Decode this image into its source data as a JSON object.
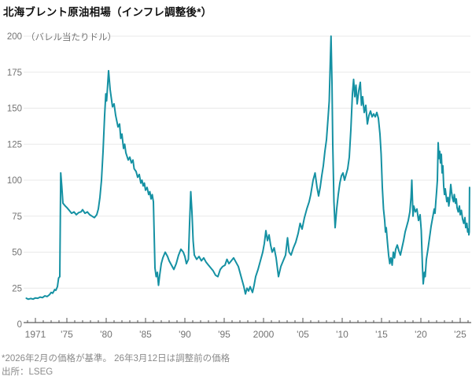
{
  "title": "北海ブレント原油相場（インフレ調整後*）",
  "footnote": "*2026年2月の価格が基準。 26年3月12日は調整前の価格",
  "source": "出所：LSEG",
  "chart_data": {
    "type": "line",
    "title": "北海ブレント原油相場（インフレ調整後*）",
    "unit_label": "（バレル当たりドル）",
    "ylabel": "バレル当たりドル",
    "xlabel": "",
    "grid": "horizontal",
    "legend": "none",
    "line_color": "#1591A3",
    "grid_color": "#e9e9e9",
    "axis_color": "#333333",
    "tick_label_color": "#737373",
    "ylim": [
      0,
      200
    ],
    "xlim": [
      1969.85,
      2026.5
    ],
    "y_ticks": [
      0,
      25,
      50,
      75,
      100,
      125,
      150,
      175,
      200
    ],
    "x_tick_years": [
      1971,
      1975,
      1980,
      1985,
      1990,
      1995,
      2000,
      2005,
      2010,
      2015,
      2020,
      2025
    ],
    "x_tick_labels": [
      "1971",
      "'75",
      "'80",
      "'85",
      "'90",
      "'95",
      "2000",
      "'05",
      "'10",
      "'15",
      "'20",
      "'25"
    ],
    "minor_tick_years": {
      "start": 1970,
      "end": 2026,
      "step": 1
    },
    "series": [
      {
        "name": "北海ブレント原油（インフレ調整後、バレル当たりドル）",
        "points": [
          [
            1969.85,
            18
          ],
          [
            1970.1,
            17.3
          ],
          [
            1970.4,
            17.8
          ],
          [
            1970.7,
            17.4
          ],
          [
            1971.0,
            18.2
          ],
          [
            1971.3,
            18.0
          ],
          [
            1971.6,
            18.8
          ],
          [
            1971.9,
            18.4
          ],
          [
            1972.2,
            19.6
          ],
          [
            1972.5,
            19.2
          ],
          [
            1972.8,
            20.5
          ],
          [
            1973.0,
            22
          ],
          [
            1973.2,
            21.5
          ],
          [
            1973.45,
            24
          ],
          [
            1973.6,
            23.5
          ],
          [
            1973.8,
            26
          ],
          [
            1973.95,
            32
          ],
          [
            1974.1,
            33
          ],
          [
            1974.22,
            105
          ],
          [
            1974.35,
            96
          ],
          [
            1974.5,
            84
          ],
          [
            1974.8,
            82
          ],
          [
            1975.0,
            81
          ],
          [
            1975.3,
            79
          ],
          [
            1975.6,
            77
          ],
          [
            1975.9,
            78
          ],
          [
            1976.2,
            76
          ],
          [
            1976.5,
            77.5
          ],
          [
            1976.8,
            78
          ],
          [
            1977.0,
            79.5
          ],
          [
            1977.3,
            77
          ],
          [
            1977.6,
            78
          ],
          [
            1977.9,
            76
          ],
          [
            1978.2,
            75
          ],
          [
            1978.5,
            74
          ],
          [
            1978.8,
            76
          ],
          [
            1979.0,
            80
          ],
          [
            1979.2,
            88
          ],
          [
            1979.4,
            100
          ],
          [
            1979.6,
            120
          ],
          [
            1979.8,
            145
          ],
          [
            1979.95,
            160
          ],
          [
            1980.05,
            155
          ],
          [
            1980.15,
            163
          ],
          [
            1980.3,
            176
          ],
          [
            1980.5,
            163
          ],
          [
            1980.8,
            151
          ],
          [
            1981.0,
            153
          ],
          [
            1981.2,
            145
          ],
          [
            1981.5,
            137
          ],
          [
            1981.7,
            139
          ],
          [
            1981.85,
            129
          ],
          [
            1982.0,
            132
          ],
          [
            1982.2,
            122
          ],
          [
            1982.35,
            125
          ],
          [
            1982.5,
            119
          ],
          [
            1982.8,
            114
          ],
          [
            1983.0,
            116
          ],
          [
            1983.2,
            112
          ],
          [
            1983.4,
            114
          ],
          [
            1983.55,
            108
          ],
          [
            1983.8,
            106
          ],
          [
            1984.0,
            102
          ],
          [
            1984.2,
            104
          ],
          [
            1984.4,
            98
          ],
          [
            1984.55,
            100
          ],
          [
            1984.7,
            96
          ],
          [
            1984.85,
            98
          ],
          [
            1985.0,
            93
          ],
          [
            1985.2,
            95
          ],
          [
            1985.4,
            90
          ],
          [
            1985.55,
            92
          ],
          [
            1985.7,
            87
          ],
          [
            1985.85,
            90
          ],
          [
            1986.0,
            85
          ],
          [
            1986.1,
            62
          ],
          [
            1986.2,
            39
          ],
          [
            1986.35,
            33
          ],
          [
            1986.5,
            36
          ],
          [
            1986.65,
            27
          ],
          [
            1986.8,
            34
          ],
          [
            1987.0,
            42
          ],
          [
            1987.2,
            46
          ],
          [
            1987.5,
            50
          ],
          [
            1987.8,
            47
          ],
          [
            1988.0,
            44
          ],
          [
            1988.3,
            41
          ],
          [
            1988.6,
            38
          ],
          [
            1988.9,
            42
          ],
          [
            1989.2,
            48
          ],
          [
            1989.5,
            52
          ],
          [
            1989.8,
            50
          ],
          [
            1990.0,
            47
          ],
          [
            1990.2,
            42
          ],
          [
            1990.45,
            45
          ],
          [
            1990.6,
            70
          ],
          [
            1990.75,
            92
          ],
          [
            1990.9,
            78
          ],
          [
            1991.05,
            58
          ],
          [
            1991.2,
            48
          ],
          [
            1991.5,
            45
          ],
          [
            1991.8,
            47
          ],
          [
            1992.1,
            44
          ],
          [
            1992.4,
            46
          ],
          [
            1992.7,
            43
          ],
          [
            1993.0,
            41
          ],
          [
            1993.3,
            39
          ],
          [
            1993.6,
            37
          ],
          [
            1993.9,
            34
          ],
          [
            1994.2,
            33
          ],
          [
            1994.5,
            38
          ],
          [
            1994.8,
            40
          ],
          [
            1995.1,
            41
          ],
          [
            1995.35,
            45
          ],
          [
            1995.6,
            42
          ],
          [
            1995.9,
            44
          ],
          [
            1996.2,
            46
          ],
          [
            1996.5,
            43
          ],
          [
            1996.8,
            40
          ],
          [
            1997.1,
            34
          ],
          [
            1997.3,
            30
          ],
          [
            1997.5,
            26
          ],
          [
            1997.7,
            21
          ],
          [
            1997.9,
            25
          ],
          [
            1998.1,
            23
          ],
          [
            1998.3,
            26
          ],
          [
            1998.6,
            22
          ],
          [
            1998.8,
            27
          ],
          [
            1999.0,
            33
          ],
          [
            1999.3,
            38
          ],
          [
            1999.6,
            44
          ],
          [
            1999.9,
            50
          ],
          [
            2000.1,
            56
          ],
          [
            2000.3,
            65
          ],
          [
            2000.5,
            58
          ],
          [
            2000.7,
            62
          ],
          [
            2000.9,
            55
          ],
          [
            2001.1,
            50
          ],
          [
            2001.35,
            53
          ],
          [
            2001.6,
            46
          ],
          [
            2001.9,
            33
          ],
          [
            2002.2,
            40
          ],
          [
            2002.5,
            44
          ],
          [
            2002.8,
            48
          ],
          [
            2003.05,
            60
          ],
          [
            2003.25,
            50
          ],
          [
            2003.5,
            48
          ],
          [
            2003.8,
            53
          ],
          [
            2004.1,
            57
          ],
          [
            2004.4,
            63
          ],
          [
            2004.65,
            70
          ],
          [
            2004.9,
            66
          ],
          [
            2005.2,
            74
          ],
          [
            2005.5,
            80
          ],
          [
            2005.8,
            85
          ],
          [
            2006.0,
            90
          ],
          [
            2006.3,
            100
          ],
          [
            2006.55,
            105
          ],
          [
            2006.8,
            95
          ],
          [
            2007.0,
            89
          ],
          [
            2007.2,
            95
          ],
          [
            2007.4,
            103
          ],
          [
            2007.6,
            110
          ],
          [
            2007.8,
            120
          ],
          [
            2008.0,
            128
          ],
          [
            2008.2,
            143
          ],
          [
            2008.35,
            155
          ],
          [
            2008.5,
            185
          ],
          [
            2008.58,
            200
          ],
          [
            2008.7,
            168
          ],
          [
            2008.8,
            125
          ],
          [
            2008.95,
            85
          ],
          [
            2009.1,
            67
          ],
          [
            2009.3,
            80
          ],
          [
            2009.5,
            90
          ],
          [
            2009.7,
            98
          ],
          [
            2009.9,
            103
          ],
          [
            2010.1,
            105
          ],
          [
            2010.3,
            100
          ],
          [
            2010.5,
            104
          ],
          [
            2010.7,
            108
          ],
          [
            2010.9,
            116
          ],
          [
            2011.1,
            135
          ],
          [
            2011.3,
            160
          ],
          [
            2011.45,
            170
          ],
          [
            2011.6,
            158
          ],
          [
            2011.75,
            166
          ],
          [
            2011.9,
            153
          ],
          [
            2012.1,
            162
          ],
          [
            2012.3,
            168
          ],
          [
            2012.45,
            152
          ],
          [
            2012.6,
            158
          ],
          [
            2012.8,
            147
          ],
          [
            2013.0,
            152
          ],
          [
            2013.2,
            139
          ],
          [
            2013.4,
            145
          ],
          [
            2013.6,
            148
          ],
          [
            2013.8,
            144
          ],
          [
            2014.0,
            146
          ],
          [
            2014.2,
            144
          ],
          [
            2014.4,
            147
          ],
          [
            2014.6,
            143
          ],
          [
            2014.8,
            132
          ],
          [
            2014.95,
            118
          ],
          [
            2015.1,
            95
          ],
          [
            2015.25,
            80
          ],
          [
            2015.4,
            72
          ],
          [
            2015.5,
            64
          ],
          [
            2015.6,
            67
          ],
          [
            2015.75,
            57
          ],
          [
            2015.9,
            48
          ],
          [
            2016.05,
            42
          ],
          [
            2016.2,
            46
          ],
          [
            2016.35,
            41
          ],
          [
            2016.5,
            50
          ],
          [
            2016.65,
            46
          ],
          [
            2016.8,
            52
          ],
          [
            2017.0,
            55
          ],
          [
            2017.2,
            51
          ],
          [
            2017.4,
            48
          ],
          [
            2017.6,
            53
          ],
          [
            2017.8,
            58
          ],
          [
            2018.0,
            64
          ],
          [
            2018.2,
            68
          ],
          [
            2018.4,
            72
          ],
          [
            2018.6,
            78
          ],
          [
            2018.75,
            88
          ],
          [
            2018.85,
            100
          ],
          [
            2019.0,
            75
          ],
          [
            2019.1,
            82
          ],
          [
            2019.3,
            78
          ],
          [
            2019.5,
            80
          ],
          [
            2019.7,
            72
          ],
          [
            2019.9,
            76
          ],
          [
            2020.05,
            65
          ],
          [
            2020.2,
            40
          ],
          [
            2020.3,
            28
          ],
          [
            2020.45,
            36
          ],
          [
            2020.55,
            33
          ],
          [
            2020.7,
            45
          ],
          [
            2020.9,
            52
          ],
          [
            2021.1,
            60
          ],
          [
            2021.3,
            68
          ],
          [
            2021.5,
            74
          ],
          [
            2021.7,
            80
          ],
          [
            2021.8,
            77
          ],
          [
            2021.9,
            85
          ],
          [
            2022.0,
            92
          ],
          [
            2022.1,
            100
          ],
          [
            2022.2,
            126
          ],
          [
            2022.3,
            115
          ],
          [
            2022.4,
            120
          ],
          [
            2022.5,
            112
          ],
          [
            2022.6,
            118
          ],
          [
            2022.7,
            105
          ],
          [
            2022.8,
            110
          ],
          [
            2022.9,
            96
          ],
          [
            2023.0,
            90
          ],
          [
            2023.1,
            94
          ],
          [
            2023.3,
            85
          ],
          [
            2023.45,
            88
          ],
          [
            2023.55,
            82
          ],
          [
            2023.65,
            86
          ],
          [
            2023.8,
            97
          ],
          [
            2023.9,
            92
          ],
          [
            2024.0,
            88
          ],
          [
            2024.15,
            85
          ],
          [
            2024.25,
            90
          ],
          [
            2024.4,
            84
          ],
          [
            2024.5,
            87
          ],
          [
            2024.6,
            81
          ],
          [
            2024.75,
            78
          ],
          [
            2024.9,
            82
          ],
          [
            2025.0,
            76
          ],
          [
            2025.15,
            79
          ],
          [
            2025.3,
            73
          ],
          [
            2025.45,
            70
          ],
          [
            2025.6,
            74
          ],
          [
            2025.7,
            67
          ],
          [
            2025.85,
            70
          ],
          [
            2025.95,
            64
          ],
          [
            2026.05,
            66
          ],
          [
            2026.1,
            62
          ],
          [
            2026.15,
            64
          ],
          [
            2026.19,
            95
          ]
        ]
      }
    ]
  }
}
